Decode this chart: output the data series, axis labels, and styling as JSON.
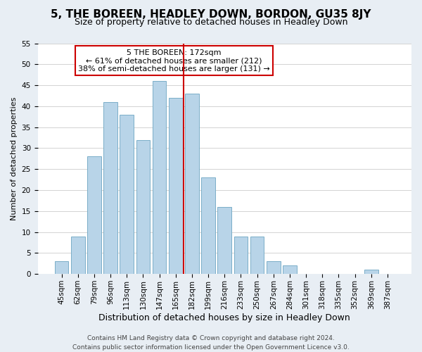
{
  "title": "5, THE BOREEN, HEADLEY DOWN, BORDON, GU35 8JY",
  "subtitle": "Size of property relative to detached houses in Headley Down",
  "xlabel": "Distribution of detached houses by size in Headley Down",
  "ylabel": "Number of detached properties",
  "bar_labels": [
    "45sqm",
    "62sqm",
    "79sqm",
    "96sqm",
    "113sqm",
    "130sqm",
    "147sqm",
    "165sqm",
    "182sqm",
    "199sqm",
    "216sqm",
    "233sqm",
    "250sqm",
    "267sqm",
    "284sqm",
    "301sqm",
    "318sqm",
    "335sqm",
    "352sqm",
    "369sqm",
    "387sqm"
  ],
  "bar_values": [
    3,
    9,
    28,
    41,
    38,
    32,
    46,
    42,
    43,
    23,
    16,
    9,
    9,
    3,
    2,
    0,
    0,
    0,
    0,
    1,
    0
  ],
  "bar_color": "#b8d4e8",
  "bar_edge_color": "#7aaec8",
  "ylim": [
    0,
    55
  ],
  "yticks": [
    0,
    5,
    10,
    15,
    20,
    25,
    30,
    35,
    40,
    45,
    50,
    55
  ],
  "vline_x": 7.5,
  "vline_color": "#cc0000",
  "annotation_title": "5 THE BOREEN: 172sqm",
  "annotation_line1": "← 61% of detached houses are smaller (212)",
  "annotation_line2": "38% of semi-detached houses are larger (131) →",
  "annotation_box_color": "#ffffff",
  "annotation_box_edge": "#cc0000",
  "footer1": "Contains HM Land Registry data © Crown copyright and database right 2024.",
  "footer2": "Contains public sector information licensed under the Open Government Licence v3.0.",
  "bg_color": "#e8eef4",
  "plot_bg_color": "#ffffff",
  "title_fontsize": 11,
  "subtitle_fontsize": 9,
  "xlabel_fontsize": 9,
  "ylabel_fontsize": 8,
  "tick_fontsize": 7.5,
  "annotation_fontsize": 8,
  "footer_fontsize": 6.5
}
